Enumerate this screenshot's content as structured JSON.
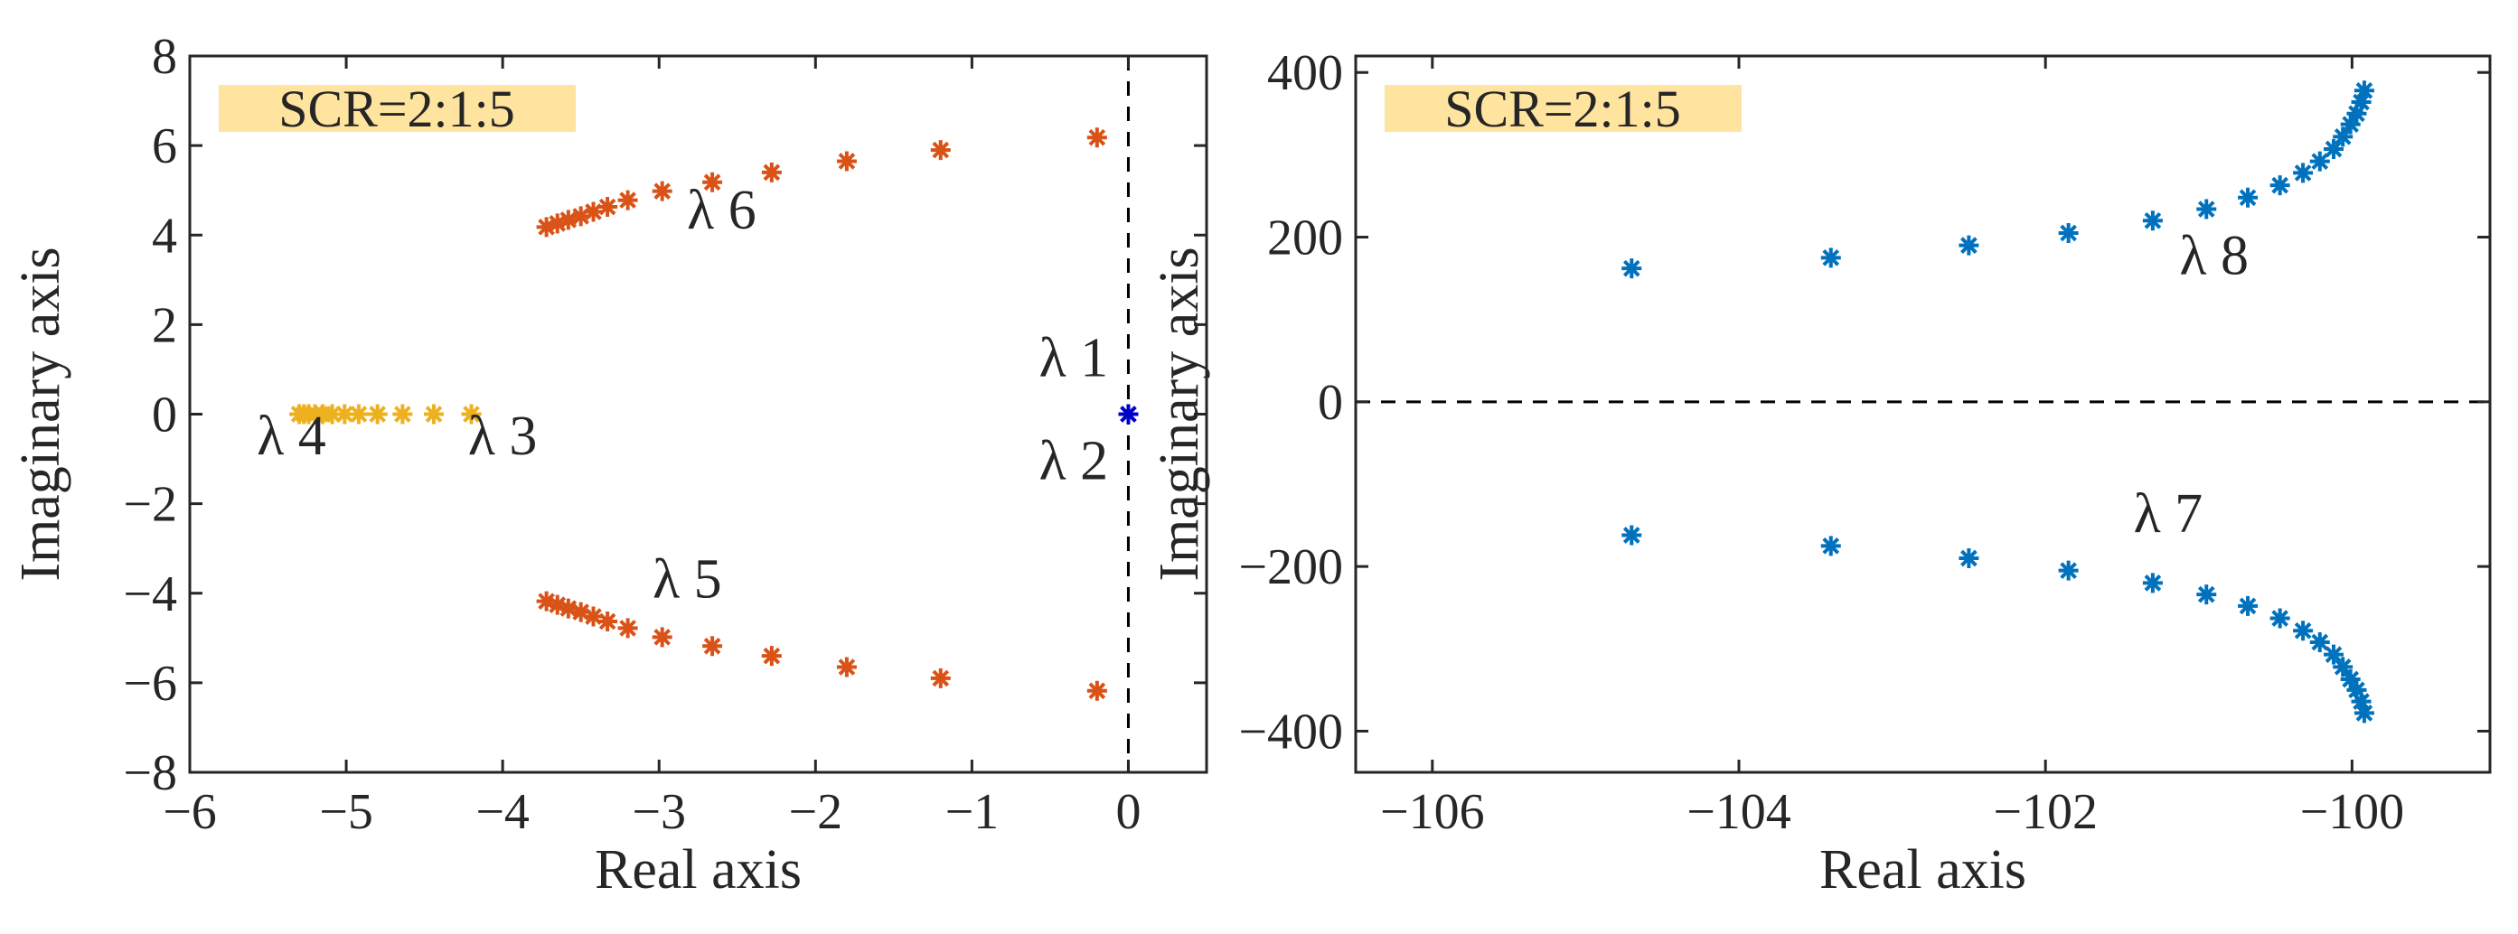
{
  "chart_data": [
    {
      "type": "scatter",
      "title": "",
      "badge": "SCR=2:1:5",
      "xlabel": "Real axis",
      "ylabel": "Imaginary axis",
      "xlim": [
        -6,
        0.5
      ],
      "ylim": [
        -8,
        8
      ],
      "xticks": [
        -6,
        -5,
        -4,
        -3,
        -2,
        -1,
        0
      ],
      "yticks": [
        -8,
        -6,
        -4,
        -2,
        0,
        2,
        4,
        6,
        8
      ],
      "xtick_labels": [
        "−6",
        "−5",
        "−4",
        "−3",
        "−2",
        "−1",
        "0"
      ],
      "ytick_labels": [
        "−8",
        "−6",
        "−4",
        "−2",
        "0",
        "2",
        "4",
        "6",
        "8"
      ],
      "reference_line": {
        "axis": "x",
        "value": 0,
        "style": "dashed"
      },
      "series": [
        {
          "name": "λ 6",
          "color": "#D95319",
          "x": [
            -3.72,
            -3.65,
            -3.58,
            -3.5,
            -3.42,
            -3.33,
            -3.2,
            -2.98,
            -2.66,
            -2.28,
            -1.8,
            -1.2,
            -0.2
          ],
          "y": [
            4.18,
            4.26,
            4.34,
            4.42,
            4.52,
            4.63,
            4.78,
            4.98,
            5.18,
            5.4,
            5.65,
            5.9,
            6.18
          ]
        },
        {
          "name": "λ 5",
          "color": "#D95319",
          "x": [
            -3.72,
            -3.65,
            -3.58,
            -3.5,
            -3.42,
            -3.33,
            -3.2,
            -2.98,
            -2.66,
            -2.28,
            -1.8,
            -1.2,
            -0.2
          ],
          "y": [
            -4.18,
            -4.26,
            -4.34,
            -4.42,
            -4.52,
            -4.63,
            -4.78,
            -4.98,
            -5.18,
            -5.4,
            -5.65,
            -5.9,
            -6.18
          ]
        },
        {
          "name": "λ 3 / λ 4",
          "color": "#EDB120",
          "x": [
            -5.3,
            -5.27,
            -5.24,
            -5.2,
            -5.15,
            -5.09,
            -5.01,
            -4.92,
            -4.8,
            -4.64,
            -4.44,
            -4.2
          ],
          "y": [
            0,
            0,
            0,
            0,
            0,
            0,
            0,
            0,
            0,
            0,
            0,
            0
          ]
        },
        {
          "name": "λ 1 / λ 2",
          "color": "#0000CC",
          "x": [
            0
          ],
          "y": [
            0
          ]
        }
      ],
      "annotations": [
        {
          "text": "λ 6",
          "x": -2.6,
          "y": 4.15
        },
        {
          "text": "λ 1",
          "x": -0.35,
          "y": 0.85
        },
        {
          "text": "λ 4",
          "x": -5.35,
          "y": -0.9
        },
        {
          "text": "λ 3",
          "x": -4.0,
          "y": -0.9
        },
        {
          "text": "λ 2",
          "x": -0.35,
          "y": -1.45
        },
        {
          "text": "λ 5",
          "x": -2.82,
          "y": -4.1
        }
      ]
    },
    {
      "type": "scatter",
      "title": "",
      "badge": "SCR=2:1:5",
      "xlabel": "Real axis",
      "ylabel": "Imaginary axis",
      "xlim": [
        -106.5,
        -99.1
      ],
      "ylim": [
        -450,
        420
      ],
      "xticks": [
        -106,
        -104,
        -102,
        -100
      ],
      "yticks": [
        -400,
        -200,
        0,
        200,
        400
      ],
      "xtick_labels": [
        "−106",
        "−104",
        "−102",
        "−100"
      ],
      "ytick_labels": [
        "−400",
        "−200",
        "0",
        "200",
        "400"
      ],
      "reference_line": {
        "axis": "y",
        "value": 0,
        "style": "dashed"
      },
      "series": [
        {
          "name": "λ 8",
          "color": "#0072BD",
          "x": [
            -104.7,
            -103.4,
            -102.5,
            -101.85,
            -101.3,
            -100.95,
            -100.68,
            -100.47,
            -100.32,
            -100.21,
            -100.12,
            -100.06,
            -100.01,
            -99.97,
            -99.94,
            -99.92
          ],
          "y": [
            162,
            175,
            190,
            205,
            220,
            234,
            248,
            263,
            278,
            292,
            307,
            322,
            337,
            350,
            364,
            378
          ]
        },
        {
          "name": "λ 7",
          "color": "#0072BD",
          "x": [
            -104.7,
            -103.4,
            -102.5,
            -101.85,
            -101.3,
            -100.95,
            -100.68,
            -100.47,
            -100.32,
            -100.21,
            -100.12,
            -100.06,
            -100.01,
            -99.97,
            -99.94,
            -99.92
          ],
          "y": [
            -162,
            -175,
            -190,
            -205,
            -220,
            -234,
            -248,
            -263,
            -278,
            -292,
            -307,
            -322,
            -337,
            -350,
            -364,
            -378
          ]
        }
      ],
      "annotations": [
        {
          "text": "λ 8",
          "x": -100.9,
          "y": 155
        },
        {
          "text": "λ 7",
          "x": -101.2,
          "y": -158
        }
      ]
    }
  ]
}
